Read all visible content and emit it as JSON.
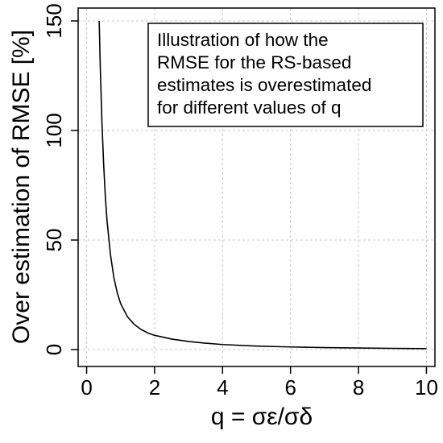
{
  "chart_data": {
    "type": "line",
    "title": "",
    "xlabel": "q = σε/σδ",
    "ylabel": "Over estimation of RMSE [%]",
    "xlim": [
      -0.25,
      10.25
    ],
    "ylim": [
      0,
      150
    ],
    "xticks": [
      0,
      2,
      4,
      6,
      8,
      10
    ],
    "yticks": [
      0,
      50,
      100,
      150
    ],
    "xtick_labels": [
      "0",
      "2",
      "4",
      "6",
      "8",
      "10"
    ],
    "ytick_labels": [
      "0",
      "50",
      "100",
      "150"
    ],
    "grid": true,
    "annotation": {
      "placement": "top-right",
      "lines": [
        "Illustration of how the",
        "RMSE for the RS-based",
        "estimates is overestimated",
        "for different values of q"
      ]
    },
    "series": [
      {
        "color": "#000000",
        "x": [
          0.37,
          0.4,
          0.45,
          0.5,
          0.55,
          0.6,
          0.7,
          0.8,
          0.9,
          1.0,
          1.2,
          1.4,
          1.6,
          1.8,
          2.0,
          2.5,
          3.0,
          3.5,
          4.0,
          5.0,
          6.0,
          7.0,
          8.0,
          9.0,
          10.0
        ],
        "y": [
          150,
          130,
          104,
          85,
          70,
          59,
          43.5,
          33,
          26,
          21,
          15,
          11.5,
          9.2,
          7.6,
          6.5,
          4.8,
          3.7,
          2.9,
          2.3,
          1.6,
          1.2,
          0.9,
          0.7,
          0.55,
          0.45
        ]
      }
    ]
  }
}
